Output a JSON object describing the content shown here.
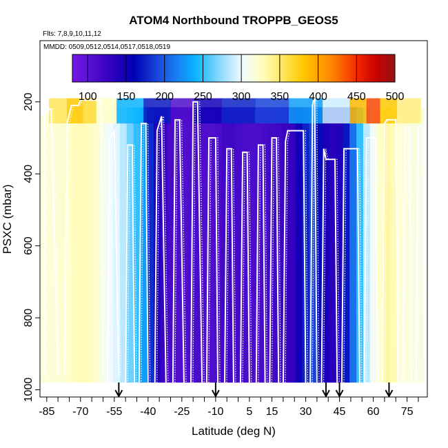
{
  "chart_data": {
    "type": "heatmap",
    "title": "ATOM4 Northbound TROPPB_GEOS5",
    "subtitle_flights": "Flts: 7,8,9,10,11,12",
    "subtitle_dates": "MMDD: 0509,0512,0514,0517,0518,0519",
    "xlabel": "Latitude (deg N)",
    "ylabel": "PSXC (mbar)",
    "xlim": [
      -88,
      84
    ],
    "ylim": [
      1020,
      30
    ],
    "x_ticks": [
      -85,
      -70,
      -55,
      -40,
      -25,
      -10,
      5,
      15,
      30,
      45,
      60,
      75
    ],
    "x_tick_labels": [
      "-85",
      "-70",
      "-55",
      "-40",
      "-25",
      "-10",
      "5",
      "15",
      "30",
      "45",
      "60",
      "75"
    ],
    "y_ticks": [
      200,
      400,
      600,
      800,
      1000
    ],
    "y_tick_labels": [
      "200",
      "400",
      "600",
      "800",
      "1000"
    ],
    "colorbar": {
      "min": 80,
      "max": 500,
      "ticks": [
        100,
        150,
        200,
        250,
        300,
        350,
        400,
        450,
        500
      ],
      "tick_labels": [
        "100",
        "150",
        "200",
        "250",
        "300",
        "350",
        "400",
        "450",
        "500"
      ]
    },
    "columns": [
      {
        "lat": -87,
        "value": 318,
        "top": 240
      },
      {
        "lat": -84,
        "value": 318,
        "top": 230
      },
      {
        "lat": -81,
        "value": 320,
        "top": 225
      },
      {
        "lat": -78,
        "value": 322,
        "top": 220
      },
      {
        "lat": -75,
        "value": 325,
        "top": 220
      },
      {
        "lat": -72,
        "value": 328,
        "top": 215
      },
      {
        "lat": -69,
        "value": 330,
        "top": 215
      },
      {
        "lat": -66,
        "value": 328,
        "top": 215
      },
      {
        "lat": -63,
        "value": 322,
        "top": 215
      },
      {
        "lat": -60,
        "value": 310,
        "top": 215
      },
      {
        "lat": -57,
        "value": 300,
        "top": 215
      },
      {
        "lat": -54,
        "value": 295,
        "top": 215
      },
      {
        "lat": -51,
        "value": 285,
        "top": 215
      },
      {
        "lat": -48,
        "value": 265,
        "top": 215
      },
      {
        "lat": -45,
        "value": 250,
        "top": 215
      },
      {
        "lat": -42,
        "value": 230,
        "top": 215
      },
      {
        "lat": -39,
        "value": 180,
        "top": 215
      },
      {
        "lat": -36,
        "value": 140,
        "top": 215
      },
      {
        "lat": -33,
        "value": 125,
        "top": 215
      },
      {
        "lat": -30,
        "value": 115,
        "top": 215
      },
      {
        "lat": -27,
        "value": 110,
        "top": 215
      },
      {
        "lat": -24,
        "value": 108,
        "top": 215
      },
      {
        "lat": -21,
        "value": 110,
        "top": 215
      },
      {
        "lat": -18,
        "value": 112,
        "top": 215
      },
      {
        "lat": -15,
        "value": 110,
        "top": 215
      },
      {
        "lat": -12,
        "value": 108,
        "top": 215
      },
      {
        "lat": -9,
        "value": 112,
        "top": 215
      },
      {
        "lat": -6,
        "value": 118,
        "top": 215
      },
      {
        "lat": -3,
        "value": 120,
        "top": 215
      },
      {
        "lat": 0,
        "value": 115,
        "top": 215
      },
      {
        "lat": 3,
        "value": 112,
        "top": 215
      },
      {
        "lat": 6,
        "value": 110,
        "top": 215
      },
      {
        "lat": 9,
        "value": 112,
        "top": 215
      },
      {
        "lat": 12,
        "value": 115,
        "top": 215
      },
      {
        "lat": 15,
        "value": 118,
        "top": 215
      },
      {
        "lat": 18,
        "value": 120,
        "top": 215
      },
      {
        "lat": 21,
        "value": 125,
        "top": 215
      },
      {
        "lat": 24,
        "value": 130,
        "top": 215
      },
      {
        "lat": 27,
        "value": 150,
        "top": 215
      },
      {
        "lat": 30,
        "value": 175,
        "top": 215
      },
      {
        "lat": 33,
        "value": 190,
        "top": 215
      },
      {
        "lat": 36,
        "value": 165,
        "top": 215
      },
      {
        "lat": 39,
        "value": 145,
        "top": 215
      },
      {
        "lat": 42,
        "value": 135,
        "top": 215
      },
      {
        "lat": 45,
        "value": 140,
        "top": 215
      },
      {
        "lat": 48,
        "value": 170,
        "top": 215
      },
      {
        "lat": 51,
        "value": 210,
        "top": 215
      },
      {
        "lat": 54,
        "value": 250,
        "top": 215
      },
      {
        "lat": 57,
        "value": 285,
        "top": 215
      },
      {
        "lat": 60,
        "value": 305,
        "top": 215
      },
      {
        "lat": 63,
        "value": 325,
        "top": 215
      },
      {
        "lat": 66,
        "value": 335,
        "top": 215
      },
      {
        "lat": 69,
        "value": 330,
        "top": 215
      },
      {
        "lat": 72,
        "value": 320,
        "top": 215
      },
      {
        "lat": 75,
        "value": 318,
        "top": 215
      },
      {
        "lat": 78,
        "value": 315,
        "top": 215
      },
      {
        "lat": 81,
        "value": 312,
        "top": 215
      }
    ],
    "upper_band": [
      {
        "lat": -80,
        "value": 355
      },
      {
        "lat": -72,
        "value": 380
      },
      {
        "lat": -66,
        "value": 365
      },
      {
        "lat": -60,
        "value": 325
      },
      {
        "lat": -48,
        "value": 240
      },
      {
        "lat": -36,
        "value": 170
      },
      {
        "lat": -24,
        "value": 110
      },
      {
        "lat": -15,
        "value": 150
      },
      {
        "lat": 0,
        "value": 175
      },
      {
        "lat": 15,
        "value": 190
      },
      {
        "lat": 30,
        "value": 230
      },
      {
        "lat": 45,
        "value": 290
      },
      {
        "lat": 54,
        "value": 390
      },
      {
        "lat": 60,
        "value": 440
      },
      {
        "lat": 66,
        "value": 380
      },
      {
        "lat": 75,
        "value": 345
      }
    ],
    "tropopause_segments": [
      [
        [
          -86,
          960
        ],
        [
          -86,
          220
        ],
        [
          -83,
          220
        ],
        [
          -80,
          960
        ]
      ],
      [
        [
          -77,
          960
        ],
        [
          -76,
          260
        ],
        [
          -74,
          210
        ],
        [
          -71,
          210
        ],
        [
          -70,
          195
        ],
        [
          -61,
          195
        ],
        [
          -60,
          960
        ]
      ],
      [
        [
          -58,
          980
        ],
        [
          -57,
          300
        ],
        [
          -55,
          280
        ],
        [
          -53,
          960
        ]
      ],
      [
        [
          -50,
          990
        ],
        [
          -49,
          320
        ],
        [
          -47,
          320
        ],
        [
          -46,
          990
        ]
      ],
      [
        [
          -44,
          990
        ],
        [
          -43,
          260
        ],
        [
          -41,
          260
        ],
        [
          -40,
          990
        ]
      ],
      [
        [
          -37,
          1000
        ],
        [
          -36,
          280
        ],
        [
          -34,
          240
        ],
        [
          -32,
          1000
        ]
      ],
      [
        [
          -29,
          1000
        ],
        [
          -28,
          250
        ],
        [
          -26,
          250
        ],
        [
          -24,
          1000
        ]
      ],
      [
        [
          -21,
          1000
        ],
        [
          -20,
          200
        ],
        [
          -18,
          200
        ],
        [
          -16,
          1000
        ]
      ],
      [
        [
          -14,
          1000
        ],
        [
          -13,
          300
        ],
        [
          -10,
          300
        ],
        [
          -9,
          1000
        ]
      ],
      [
        [
          -6,
          1000
        ],
        [
          -5,
          330
        ],
        [
          -3,
          330
        ],
        [
          -2,
          1000
        ]
      ],
      [
        [
          1,
          1000
        ],
        [
          2,
          340
        ],
        [
          4,
          340
        ],
        [
          5,
          1000
        ]
      ],
      [
        [
          8,
          1000
        ],
        [
          9,
          320
        ],
        [
          11,
          320
        ],
        [
          12,
          1000
        ]
      ],
      [
        [
          14,
          1000
        ],
        [
          15,
          300
        ],
        [
          17,
          300
        ],
        [
          18,
          1000
        ]
      ],
      [
        [
          20,
          1000
        ],
        [
          21,
          310
        ],
        [
          22,
          280
        ],
        [
          29,
          280
        ],
        [
          30,
          1000
        ]
      ],
      [
        [
          32,
          1000
        ],
        [
          33,
          210
        ],
        [
          34,
          180
        ],
        [
          35,
          1000
        ]
      ],
      [
        [
          37,
          1000
        ],
        [
          38,
          330
        ],
        [
          39,
          360
        ],
        [
          43,
          360
        ],
        [
          44,
          1000
        ]
      ],
      [
        [
          46,
          1000
        ],
        [
          47,
          330
        ],
        [
          53,
          330
        ],
        [
          54,
          1000
        ]
      ],
      [
        [
          56,
          1000
        ],
        [
          57,
          300
        ],
        [
          61,
          300
        ],
        [
          62,
          1000
        ]
      ],
      [
        [
          64,
          1000
        ],
        [
          65,
          260
        ],
        [
          66,
          250
        ],
        [
          70,
          250
        ],
        [
          71,
          1000
        ]
      ],
      [
        [
          73,
          1000
        ],
        [
          74,
          270
        ],
        [
          76,
          270
        ],
        [
          77,
          1000
        ]
      ],
      [
        [
          79,
          1000
        ],
        [
          80,
          270
        ],
        [
          82,
          270
        ],
        [
          83,
          1000
        ]
      ]
    ],
    "arrows_lat": [
      -53,
      -10,
      39,
      45,
      67
    ]
  }
}
